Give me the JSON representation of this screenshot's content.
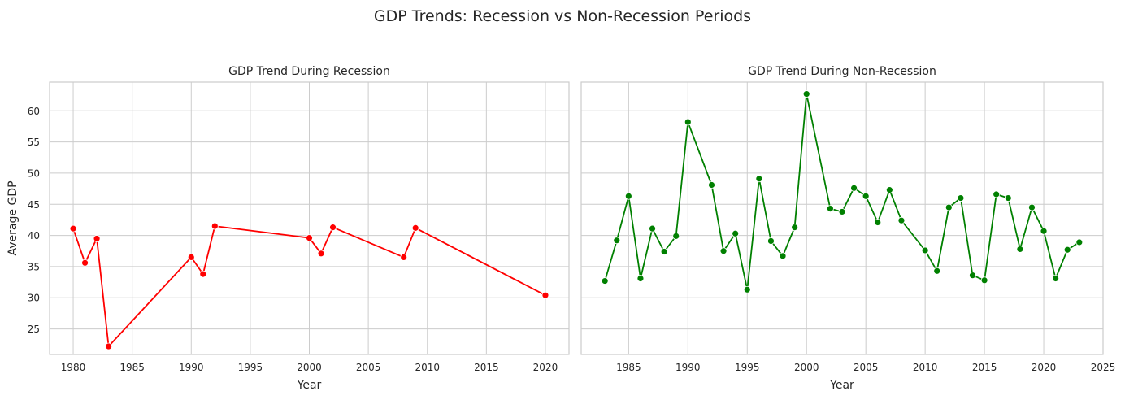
{
  "suptitle": "GDP Trends: Recession vs Non-Recession Periods",
  "chart_data": [
    {
      "type": "line",
      "title": "GDP Trend During Recession",
      "xlabel": "Year",
      "ylabel": "Average GDP",
      "xlim": [
        1978,
        2022
      ],
      "ylim": [
        20.9,
        64.6
      ],
      "xticks": [
        1980,
        1985,
        1990,
        1995,
        2000,
        2005,
        2010,
        2015,
        2020
      ],
      "yticks": [
        25,
        30,
        35,
        40,
        45,
        50,
        55,
        60
      ],
      "grid": true,
      "marker": "o",
      "color": "#ff0000",
      "x": [
        1980,
        1981,
        1982,
        1983,
        1990,
        1991,
        1992,
        2000,
        2001,
        2002,
        2008,
        2009,
        2020
      ],
      "y": [
        41.1,
        35.6,
        39.5,
        22.2,
        36.5,
        33.8,
        41.5,
        39.6,
        37.1,
        41.3,
        36.5,
        41.2,
        30.4
      ]
    },
    {
      "type": "line",
      "title": "GDP Trend During Non-Recession",
      "xlabel": "Year",
      "ylabel": "",
      "xlim": [
        1981,
        2025
      ],
      "ylim": [
        20.9,
        64.6
      ],
      "xticks": [
        1985,
        1990,
        1995,
        2000,
        2005,
        2010,
        2015,
        2020,
        2025
      ],
      "yticks": [
        25,
        30,
        35,
        40,
        45,
        50,
        55,
        60
      ],
      "grid": true,
      "marker": "o",
      "color": "#008000",
      "x": [
        1983,
        1984,
        1985,
        1986,
        1987,
        1988,
        1989,
        1990,
        1992,
        1993,
        1994,
        1995,
        1996,
        1997,
        1998,
        1999,
        2000,
        2002,
        2003,
        2004,
        2005,
        2006,
        2007,
        2008,
        2010,
        2011,
        2012,
        2013,
        2014,
        2015,
        2016,
        2017,
        2018,
        2019,
        2020,
        2021,
        2022,
        2023
      ],
      "y": [
        32.7,
        39.2,
        46.3,
        33.1,
        41.1,
        37.4,
        39.9,
        58.2,
        48.1,
        37.5,
        40.3,
        31.3,
        49.1,
        39.1,
        36.7,
        41.3,
        62.7,
        44.3,
        43.8,
        47.6,
        46.3,
        42.1,
        47.3,
        42.4,
        37.6,
        34.3,
        44.5,
        46.0,
        33.6,
        32.8,
        46.6,
        46.0,
        37.8,
        44.5,
        40.7,
        33.1,
        37.7,
        38.9
      ]
    }
  ]
}
